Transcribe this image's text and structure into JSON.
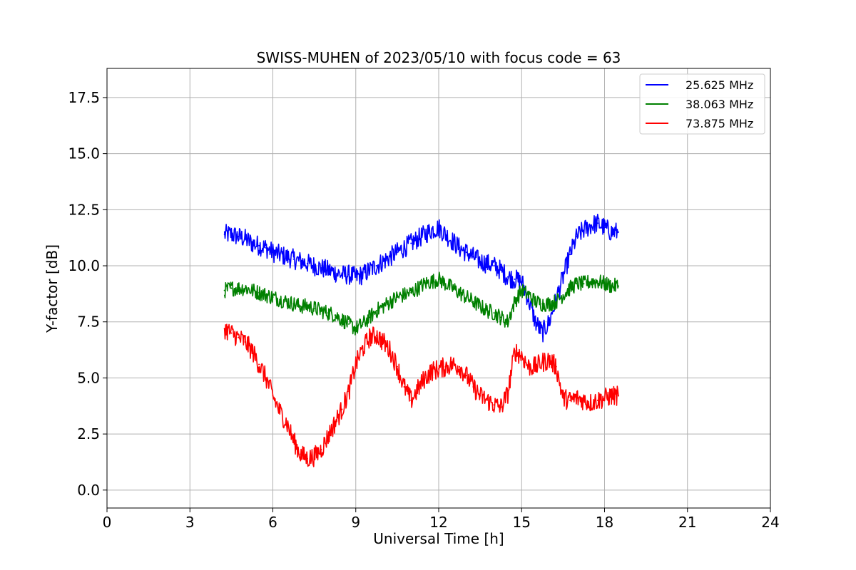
{
  "chart_data": {
    "type": "line",
    "title": "SWISS-MUHEN of 2023/05/10 with focus code = 63",
    "xlabel": "Universal Time [h]",
    "ylabel": "Y-factor [dB]",
    "xlim": [
      0,
      24
    ],
    "ylim": [
      -0.8,
      18.8
    ],
    "xticks": [
      0,
      3,
      6,
      9,
      12,
      15,
      18,
      21,
      24
    ],
    "xtick_labels": [
      "0",
      "3",
      "6",
      "9",
      "12",
      "15",
      "18",
      "21",
      "24"
    ],
    "yticks": [
      0.0,
      2.5,
      5.0,
      7.5,
      10.0,
      12.5,
      15.0,
      17.5
    ],
    "ytick_labels": [
      "0.0",
      "2.5",
      "5.0",
      "7.5",
      "10.0",
      "12.5",
      "15.0",
      "17.5"
    ],
    "grid": true,
    "legend_position": "top-right",
    "series": [
      {
        "name": "25.625 MHz",
        "color": "#0000ff",
        "x": [
          4.25,
          4.5,
          4.75,
          5.0,
          5.25,
          5.5,
          5.75,
          6.0,
          6.25,
          6.5,
          6.75,
          7.0,
          7.25,
          7.5,
          7.75,
          8.0,
          8.25,
          8.5,
          8.75,
          9.0,
          9.25,
          9.5,
          9.75,
          10.0,
          10.25,
          10.5,
          10.75,
          11.0,
          11.25,
          11.5,
          11.75,
          12.0,
          12.25,
          12.5,
          12.75,
          13.0,
          13.25,
          13.5,
          13.75,
          14.0,
          14.25,
          14.5,
          14.75,
          15.0,
          15.25,
          15.5,
          15.75,
          16.0,
          16.25,
          16.5,
          16.75,
          17.0,
          17.25,
          17.5,
          17.75,
          18.0,
          18.25,
          18.5
        ],
        "y": [
          11.4,
          11.4,
          11.3,
          11.2,
          11.0,
          10.9,
          10.8,
          10.6,
          10.5,
          10.4,
          10.3,
          10.2,
          10.1,
          10.0,
          9.9,
          9.8,
          9.7,
          9.6,
          9.6,
          9.5,
          9.6,
          9.8,
          10.0,
          10.2,
          10.4,
          10.6,
          10.8,
          11.0,
          11.2,
          11.4,
          11.6,
          11.7,
          11.4,
          11.1,
          10.8,
          10.6,
          10.4,
          10.2,
          10.1,
          10.0,
          9.8,
          9.5,
          9.4,
          9.3,
          8.5,
          7.5,
          7.0,
          7.5,
          8.5,
          9.5,
          10.5,
          11.3,
          11.6,
          11.8,
          11.9,
          11.7,
          11.5,
          11.5
        ]
      },
      {
        "name": "38.063 MHz",
        "color": "#008000",
        "x": [
          4.25,
          4.5,
          4.75,
          5.0,
          5.25,
          5.5,
          5.75,
          6.0,
          6.25,
          6.5,
          6.75,
          7.0,
          7.25,
          7.5,
          7.75,
          8.0,
          8.25,
          8.5,
          8.75,
          9.0,
          9.25,
          9.5,
          9.75,
          10.0,
          10.25,
          10.5,
          10.75,
          11.0,
          11.25,
          11.5,
          11.75,
          12.0,
          12.25,
          12.5,
          12.75,
          13.0,
          13.25,
          13.5,
          13.75,
          14.0,
          14.25,
          14.5,
          14.75,
          15.0,
          15.25,
          15.5,
          15.75,
          16.0,
          16.25,
          16.5,
          16.75,
          17.0,
          17.25,
          17.5,
          17.75,
          18.0,
          18.25,
          18.5
        ],
        "y": [
          8.9,
          9.0,
          9.0,
          9.0,
          8.9,
          8.8,
          8.7,
          8.6,
          8.5,
          8.4,
          8.3,
          8.2,
          8.2,
          8.1,
          8.0,
          7.9,
          7.8,
          7.6,
          7.4,
          7.2,
          7.4,
          7.7,
          8.0,
          8.2,
          8.4,
          8.6,
          8.7,
          8.8,
          9.0,
          9.2,
          9.3,
          9.4,
          9.2,
          9.0,
          8.8,
          8.6,
          8.4,
          8.2,
          8.0,
          7.9,
          7.7,
          7.5,
          8.4,
          8.9,
          8.7,
          8.4,
          8.3,
          8.3,
          8.4,
          8.7,
          9.0,
          9.2,
          9.2,
          9.3,
          9.3,
          9.2,
          9.1,
          9.1
        ]
      },
      {
        "name": "73.875 MHz",
        "color": "#ff0000",
        "x": [
          4.25,
          4.5,
          4.75,
          5.0,
          5.25,
          5.5,
          5.75,
          6.0,
          6.25,
          6.5,
          6.75,
          7.0,
          7.25,
          7.5,
          7.75,
          8.0,
          8.25,
          8.5,
          8.75,
          9.0,
          9.25,
          9.5,
          9.75,
          10.0,
          10.25,
          10.5,
          10.75,
          11.0,
          11.25,
          11.5,
          11.75,
          12.0,
          12.25,
          12.5,
          12.75,
          13.0,
          13.25,
          13.5,
          13.75,
          14.0,
          14.25,
          14.5,
          14.75,
          15.0,
          15.25,
          15.5,
          15.75,
          16.0,
          16.25,
          16.5,
          16.75,
          17.0,
          17.25,
          17.5,
          17.75,
          18.0,
          18.25,
          18.5
        ],
        "y": [
          7.2,
          7.0,
          6.8,
          6.6,
          6.2,
          5.6,
          5.0,
          4.2,
          3.5,
          3.0,
          2.2,
          1.6,
          1.4,
          1.5,
          1.8,
          2.4,
          3.0,
          3.6,
          4.4,
          5.6,
          6.3,
          6.8,
          6.9,
          6.6,
          6.2,
          5.5,
          4.6,
          4.0,
          4.5,
          5.0,
          5.3,
          5.4,
          5.5,
          5.6,
          5.5,
          5.1,
          4.6,
          4.2,
          4.0,
          3.8,
          3.7,
          4.3,
          6.2,
          6.0,
          5.5,
          5.5,
          5.7,
          5.8,
          5.5,
          4.1,
          4.0,
          4.1,
          4.0,
          3.9,
          4.0,
          4.1,
          4.2,
          4.2
        ]
      }
    ]
  }
}
